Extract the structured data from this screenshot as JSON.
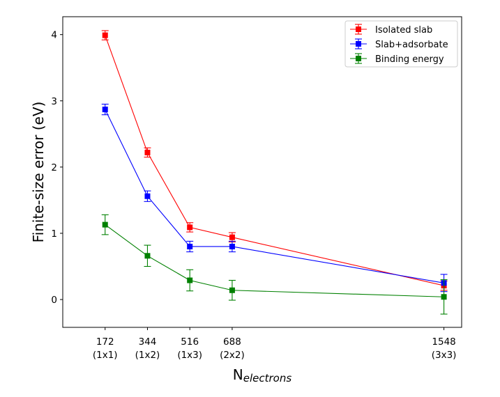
{
  "chart_data": {
    "type": "line",
    "title": "",
    "xlabel": "N",
    "xlabel_subscript": "electrons",
    "ylabel": "Finite-size error (eV)",
    "x": [
      172,
      344,
      516,
      688,
      1548
    ],
    "x_tick_labels": [
      {
        "value": 172,
        "number": "172",
        "cell": "(1x1)"
      },
      {
        "value": 344,
        "number": "344",
        "cell": "(1x2)"
      },
      {
        "value": 516,
        "number": "516",
        "cell": "(1x3)"
      },
      {
        "value": 688,
        "number": "688",
        "cell": "(2x2)"
      },
      {
        "value": 1548,
        "number": "1548",
        "cell": "(3x3)"
      }
    ],
    "y_ticks": [
      0,
      1,
      2,
      3,
      4
    ],
    "xlim": [
      0,
      1620
    ],
    "ylim": [
      -0.42,
      4.27
    ],
    "grid": false,
    "legend_position": "top-right",
    "series": [
      {
        "name": "Isolated slab",
        "color": "#ff0000",
        "values": [
          3.99,
          2.22,
          1.09,
          0.94,
          0.21
        ],
        "errors": [
          0.07,
          0.07,
          0.07,
          0.07,
          0.07
        ]
      },
      {
        "name": "Slab+adsorbate",
        "color": "#0000ff",
        "values": [
          2.87,
          1.56,
          0.8,
          0.8,
          0.25
        ],
        "errors": [
          0.08,
          0.08,
          0.08,
          0.08,
          0.13
        ]
      },
      {
        "name": "Binding energy",
        "color": "#008000",
        "values": [
          1.13,
          0.66,
          0.29,
          0.14,
          0.04
        ],
        "errors": [
          0.15,
          0.16,
          0.16,
          0.15,
          0.26
        ]
      }
    ]
  }
}
